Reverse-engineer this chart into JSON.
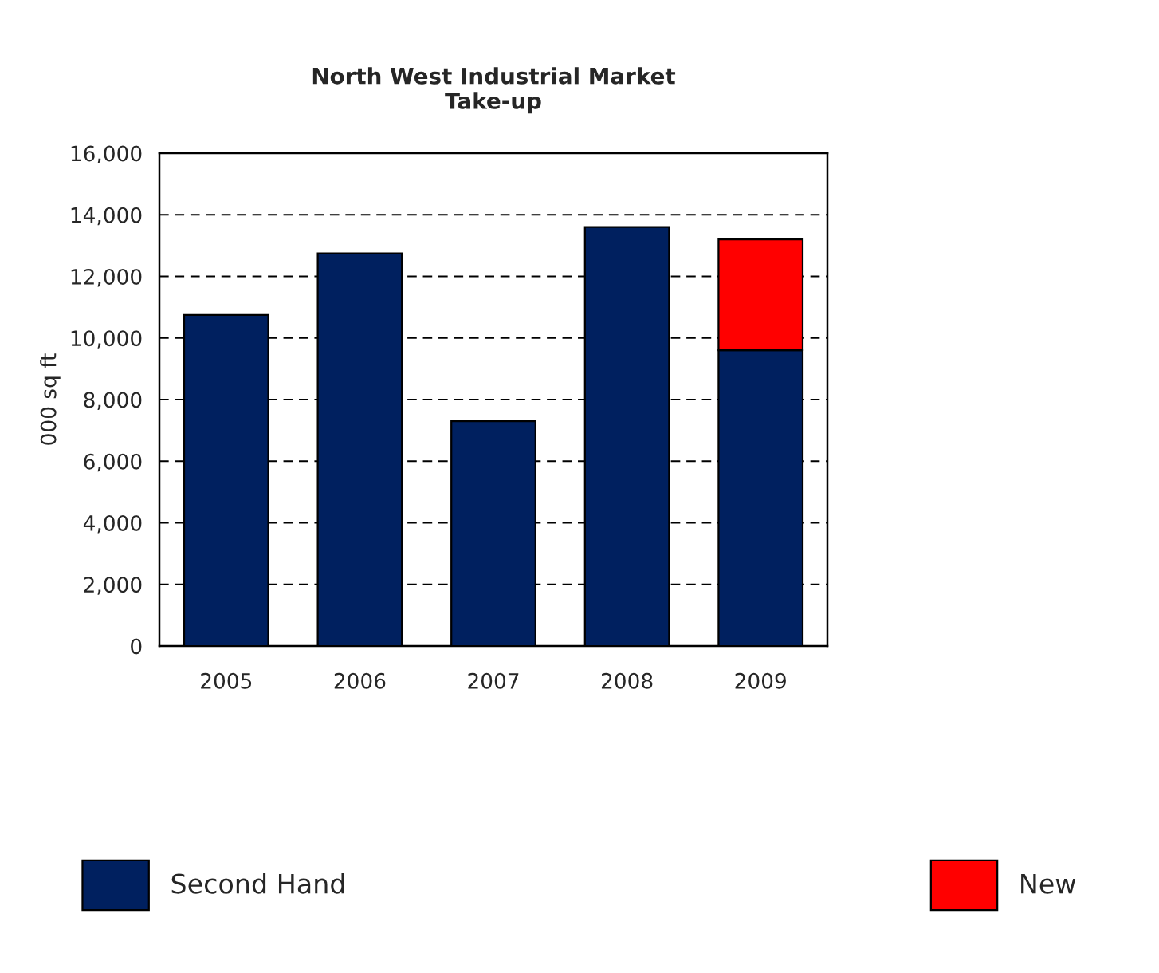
{
  "chart_data": {
    "type": "bar",
    "title": "North West Industrial Market\nTake-up",
    "ylabel": "000 sq ft",
    "categories": [
      "2005",
      "2006",
      "2007",
      "2008",
      "2009"
    ],
    "stacked": true,
    "series": [
      {
        "name": "Second Hand",
        "color": "#00205f",
        "values": [
          10750,
          12750,
          7300,
          13600,
          9600
        ]
      },
      {
        "name": "New",
        "color": "#ff0000",
        "values": [
          null,
          null,
          null,
          null,
          3600
        ]
      }
    ],
    "ylim": [
      0,
      16000
    ],
    "yticks": [
      {
        "value": 0,
        "label": "0"
      },
      {
        "value": 2000,
        "label": "2,000"
      },
      {
        "value": 4000,
        "label": "4,000"
      },
      {
        "value": 6000,
        "label": "6,000"
      },
      {
        "value": 8000,
        "label": "8,000"
      },
      {
        "value": 10000,
        "label": "10,000"
      },
      {
        "value": 12000,
        "label": "12,000"
      },
      {
        "value": 14000,
        "label": "14,000"
      },
      {
        "value": 16000,
        "label": "16,000"
      }
    ],
    "grid": "y",
    "legend": "bottom"
  }
}
